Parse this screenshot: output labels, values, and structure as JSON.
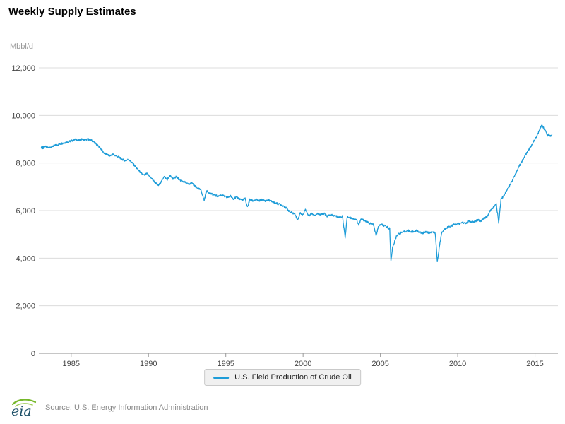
{
  "header": {
    "title": "Weekly Supply Estimates"
  },
  "footer": {
    "logo_text": "eia",
    "source": "Source: U.S. Energy Information Administration"
  },
  "chart_data": {
    "type": "line",
    "title": "Weekly Supply Estimates",
    "xlabel": "",
    "ylabel": "Mbbl/d",
    "x_range": [
      1983,
      2016.3
    ],
    "y_range": [
      0,
      12000
    ],
    "x_ticks": [
      1985,
      1990,
      1995,
      2000,
      2005,
      2010,
      2015
    ],
    "x_tick_labels": [
      "1985",
      "1990",
      "1995",
      "2000",
      "2005",
      "2010",
      "2015"
    ],
    "y_ticks": [
      0,
      2000,
      4000,
      6000,
      8000,
      10000,
      12000
    ],
    "y_tick_labels": [
      "0",
      "2,000",
      "4,000",
      "6,000",
      "8,000",
      "10,000",
      "12,000"
    ],
    "grid": "horizontal",
    "legend_position": "bottom",
    "series": [
      {
        "name": "U.S. Field Production of Crude Oil",
        "color": "#1d9cd8",
        "points": [
          [
            1983.15,
            8650
          ],
          [
            1983.3,
            8700
          ],
          [
            1983.5,
            8640
          ],
          [
            1983.7,
            8680
          ],
          [
            1983.9,
            8730
          ],
          [
            1984.1,
            8760
          ],
          [
            1984.35,
            8820
          ],
          [
            1984.6,
            8860
          ],
          [
            1984.85,
            8900
          ],
          [
            1985.1,
            8950
          ],
          [
            1985.3,
            9000
          ],
          [
            1985.5,
            8940
          ],
          [
            1985.7,
            9000
          ],
          [
            1985.9,
            8970
          ],
          [
            1986.1,
            9000
          ],
          [
            1986.3,
            8960
          ],
          [
            1986.5,
            8870
          ],
          [
            1986.7,
            8740
          ],
          [
            1986.9,
            8620
          ],
          [
            1987.1,
            8430
          ],
          [
            1987.3,
            8360
          ],
          [
            1987.5,
            8300
          ],
          [
            1987.7,
            8360
          ],
          [
            1987.9,
            8300
          ],
          [
            1988.1,
            8240
          ],
          [
            1988.3,
            8160
          ],
          [
            1988.5,
            8090
          ],
          [
            1988.7,
            8150
          ],
          [
            1988.9,
            8040
          ],
          [
            1989.1,
            7890
          ],
          [
            1989.3,
            7740
          ],
          [
            1989.5,
            7590
          ],
          [
            1989.7,
            7480
          ],
          [
            1989.9,
            7550
          ],
          [
            1990.1,
            7420
          ],
          [
            1990.3,
            7280
          ],
          [
            1990.5,
            7130
          ],
          [
            1990.65,
            7060
          ],
          [
            1990.85,
            7230
          ],
          [
            1991.0,
            7440
          ],
          [
            1991.2,
            7300
          ],
          [
            1991.4,
            7460
          ],
          [
            1991.6,
            7330
          ],
          [
            1991.8,
            7440
          ],
          [
            1992.0,
            7290
          ],
          [
            1992.2,
            7230
          ],
          [
            1992.4,
            7180
          ],
          [
            1992.6,
            7100
          ],
          [
            1992.8,
            7160
          ],
          [
            1993.0,
            7020
          ],
          [
            1993.2,
            6930
          ],
          [
            1993.4,
            6860
          ],
          [
            1993.6,
            6430
          ],
          [
            1993.75,
            6820
          ],
          [
            1993.9,
            6760
          ],
          [
            1994.1,
            6690
          ],
          [
            1994.3,
            6640
          ],
          [
            1994.5,
            6600
          ],
          [
            1994.7,
            6660
          ],
          [
            1994.9,
            6600
          ],
          [
            1995.1,
            6550
          ],
          [
            1995.3,
            6610
          ],
          [
            1995.5,
            6500
          ],
          [
            1995.7,
            6560
          ],
          [
            1995.9,
            6490
          ],
          [
            1996.1,
            6450
          ],
          [
            1996.25,
            6500
          ],
          [
            1996.4,
            6140
          ],
          [
            1996.55,
            6460
          ],
          [
            1996.75,
            6410
          ],
          [
            1996.95,
            6460
          ],
          [
            1997.15,
            6410
          ],
          [
            1997.35,
            6460
          ],
          [
            1997.55,
            6400
          ],
          [
            1997.75,
            6450
          ],
          [
            1997.95,
            6390
          ],
          [
            1998.15,
            6330
          ],
          [
            1998.35,
            6290
          ],
          [
            1998.55,
            6250
          ],
          [
            1998.75,
            6190
          ],
          [
            1998.95,
            6080
          ],
          [
            1999.15,
            5940
          ],
          [
            1999.35,
            5890
          ],
          [
            1999.5,
            5840
          ],
          [
            1999.65,
            5590
          ],
          [
            1999.8,
            5900
          ],
          [
            2000.0,
            5820
          ],
          [
            2000.15,
            6060
          ],
          [
            2000.35,
            5780
          ],
          [
            2000.55,
            5880
          ],
          [
            2000.75,
            5810
          ],
          [
            2000.95,
            5870
          ],
          [
            2001.15,
            5830
          ],
          [
            2001.35,
            5880
          ],
          [
            2001.55,
            5760
          ],
          [
            2001.75,
            5820
          ],
          [
            2001.95,
            5790
          ],
          [
            2002.15,
            5760
          ],
          [
            2002.35,
            5710
          ],
          [
            2002.55,
            5760
          ],
          [
            2002.72,
            4850
          ],
          [
            2002.85,
            5730
          ],
          [
            2003.05,
            5700
          ],
          [
            2003.25,
            5660
          ],
          [
            2003.45,
            5610
          ],
          [
            2003.6,
            5400
          ],
          [
            2003.75,
            5640
          ],
          [
            2003.95,
            5590
          ],
          [
            2004.15,
            5510
          ],
          [
            2004.35,
            5460
          ],
          [
            2004.55,
            5410
          ],
          [
            2004.72,
            4950
          ],
          [
            2004.88,
            5340
          ],
          [
            2005.05,
            5420
          ],
          [
            2005.25,
            5360
          ],
          [
            2005.45,
            5300
          ],
          [
            2005.6,
            5240
          ],
          [
            2005.68,
            3880
          ],
          [
            2005.78,
            4420
          ],
          [
            2005.9,
            4650
          ],
          [
            2006.05,
            4950
          ],
          [
            2006.2,
            5030
          ],
          [
            2006.4,
            5080
          ],
          [
            2006.6,
            5120
          ],
          [
            2006.8,
            5160
          ],
          [
            2006.95,
            5100
          ],
          [
            2007.15,
            5110
          ],
          [
            2007.35,
            5160
          ],
          [
            2007.55,
            5090
          ],
          [
            2007.75,
            5050
          ],
          [
            2007.95,
            5110
          ],
          [
            2008.15,
            5060
          ],
          [
            2008.35,
            5110
          ],
          [
            2008.55,
            5040
          ],
          [
            2008.68,
            3850
          ],
          [
            2008.8,
            4400
          ],
          [
            2008.95,
            5040
          ],
          [
            2009.1,
            5190
          ],
          [
            2009.3,
            5290
          ],
          [
            2009.5,
            5340
          ],
          [
            2009.7,
            5390
          ],
          [
            2009.9,
            5440
          ],
          [
            2010.1,
            5440
          ],
          [
            2010.3,
            5510
          ],
          [
            2010.5,
            5450
          ],
          [
            2010.7,
            5560
          ],
          [
            2010.9,
            5500
          ],
          [
            2011.1,
            5540
          ],
          [
            2011.3,
            5600
          ],
          [
            2011.5,
            5560
          ],
          [
            2011.7,
            5680
          ],
          [
            2011.9,
            5740
          ],
          [
            2012.1,
            5990
          ],
          [
            2012.3,
            6140
          ],
          [
            2012.5,
            6260
          ],
          [
            2012.65,
            5490
          ],
          [
            2012.8,
            6480
          ],
          [
            2012.95,
            6600
          ],
          [
            2013.15,
            6820
          ],
          [
            2013.35,
            7050
          ],
          [
            2013.55,
            7300
          ],
          [
            2013.75,
            7560
          ],
          [
            2013.95,
            7840
          ],
          [
            2014.15,
            8060
          ],
          [
            2014.35,
            8300
          ],
          [
            2014.55,
            8520
          ],
          [
            2014.75,
            8700
          ],
          [
            2014.95,
            8950
          ],
          [
            2015.1,
            9120
          ],
          [
            2015.25,
            9320
          ],
          [
            2015.45,
            9610
          ],
          [
            2015.55,
            9480
          ],
          [
            2015.7,
            9330
          ],
          [
            2015.82,
            9150
          ],
          [
            2015.92,
            9210
          ],
          [
            2016.0,
            9140
          ],
          [
            2016.1,
            9220
          ]
        ]
      }
    ]
  }
}
